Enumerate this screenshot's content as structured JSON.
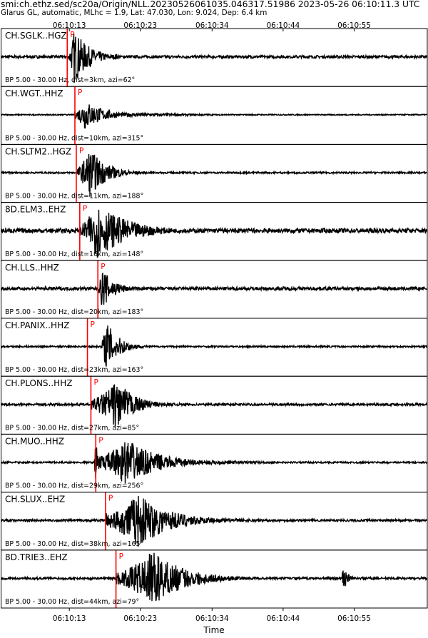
{
  "header": {
    "line1": "smi:ch.ethz.sed/sc20a/Origin/NLL.20230526061035.046317.51986 2023-05-26 06:10:11.3 UTC",
    "line2": "Glarus GL, automatic, MLhc = 1.9, Lat: 47.030, Lon: 9.024, Dep: 6.4 km"
  },
  "chart_data": {
    "type": "line",
    "title": "smi:ch.ethz.sed/sc20a/Origin/NLL.20230526061035.046317.51986 2023-05-26 06:10:11.3 UTC",
    "subtitle": "Glarus GL, automatic, MLhc = 1.9, Lat: 47.030, Lon: 9.024, Dep: 6.4 km",
    "xlabel": "Time",
    "xlim": [
      "06:10:03.5",
      "06:11:04.7"
    ],
    "xtick_labels": [
      "06:10:13",
      "06:10:23",
      "06:10:34",
      "06:10:44",
      "06:10:55"
    ],
    "xtick_seconds": [
      13.3,
      23.5,
      33.8,
      44.0,
      54.2
    ],
    "grid": false,
    "series": [
      {
        "name": "CH.SGLK..HGZ",
        "filter": "BP 5.00 - 30.00 Hz, dist=3km, azi=62°",
        "pick_label": "P",
        "pick_s": 13.0,
        "onset_s": 13.3,
        "peak_s": 14.0,
        "amp": 1.0,
        "decay_s": 2.2,
        "coda": 0.08,
        "noise": 0.05,
        "extra_bursts": [
          [
            20.0,
            0.12,
            0.6
          ]
        ]
      },
      {
        "name": "CH.WGT..HHZ",
        "filter": "BP 5.00 - 30.00 Hz, dist=10km, azi=315°",
        "pick_label": "P",
        "pick_s": 14.1,
        "onset_s": 14.1,
        "peak_s": 15.5,
        "amp": 0.55,
        "decay_s": 2.8,
        "coda": 0.12,
        "noise": 0.02,
        "extra_bursts": []
      },
      {
        "name": "CH.SLTM2..HGZ",
        "filter": "BP 5.00 - 30.00 Hz, dist=11km, azi=188°",
        "pick_label": "P",
        "pick_s": 14.3,
        "onset_s": 14.5,
        "peak_s": 16.2,
        "amp": 0.9,
        "decay_s": 2.4,
        "coda": 0.06,
        "noise": 0.03,
        "extra_bursts": []
      },
      {
        "name": "8D.ELM3..EHZ",
        "filter": "BP 5.00 - 30.00 Hz, dist=16km, azi=148°",
        "pick_label": "P",
        "pick_s": 14.8,
        "onset_s": 14.8,
        "peak_s": 17.3,
        "amp": 1.0,
        "decay_s": 4.5,
        "coda": 0.08,
        "noise": 0.08,
        "extra_bursts": []
      },
      {
        "name": "CH.LLS..HHZ",
        "filter": "BP 5.00 - 30.00 Hz, dist=20km, azi=183°",
        "pick_label": "P",
        "pick_s": 17.4,
        "onset_s": 17.5,
        "peak_s": 18.0,
        "amp": 0.75,
        "decay_s": 1.8,
        "coda": 0.08,
        "noise": 0.06,
        "extra_bursts": []
      },
      {
        "name": "CH.PANIX..HHZ",
        "filter": "BP 5.00 - 30.00 Hz, dist=23km, azi=163°",
        "pick_label": "P",
        "pick_s": 15.9,
        "onset_s": 17.8,
        "peak_s": 18.7,
        "amp": 0.9,
        "decay_s": 1.8,
        "coda": 0.05,
        "noise": 0.03,
        "extra_bursts": []
      },
      {
        "name": "CH.PLONS..HHZ",
        "filter": "BP 5.00 - 30.00 Hz, dist=27km, azi=85°",
        "pick_label": "P",
        "pick_s": 16.4,
        "onset_s": 16.4,
        "peak_s": 20.2,
        "amp": 0.9,
        "decay_s": 2.5,
        "coda": 0.1,
        "noise": 0.04,
        "extra_bursts": []
      },
      {
        "name": "CH.MUO..HHZ",
        "filter": "BP 5.00 - 30.00 Hz, dist=29km, azi=256°",
        "pick_label": "P",
        "pick_s": 17.1,
        "onset_s": 17.1,
        "peak_s": 21.5,
        "amp": 0.85,
        "decay_s": 4.5,
        "coda": 0.2,
        "noise": 0.03,
        "extra_bursts": [
          [
            17.2,
            0.7,
            0.7
          ]
        ]
      },
      {
        "name": "CH.SLUX..EHZ",
        "filter": "BP 5.00 - 30.00 Hz, dist=38km, azi=165°",
        "pick_label": "P",
        "pick_s": 18.5,
        "onset_s": 18.5,
        "peak_s": 23.2,
        "amp": 1.0,
        "decay_s": 4.5,
        "coda": 0.2,
        "noise": 0.04,
        "extra_bursts": []
      },
      {
        "name": "8D.TRIE3..EHZ",
        "filter": "BP 5.00 - 30.00 Hz, dist=44km, azi=79°",
        "pick_label": "P",
        "pick_s": 20.0,
        "onset_s": 20.0,
        "peak_s": 25.3,
        "amp": 1.0,
        "decay_s": 4.5,
        "coda": 0.15,
        "noise": 0.04,
        "extra_bursts": [
          [
            52.8,
            0.4,
            0.6
          ]
        ]
      }
    ]
  },
  "colors": {
    "trace": "#000000",
    "pick": "#ff0000",
    "frame": "#000000"
  }
}
